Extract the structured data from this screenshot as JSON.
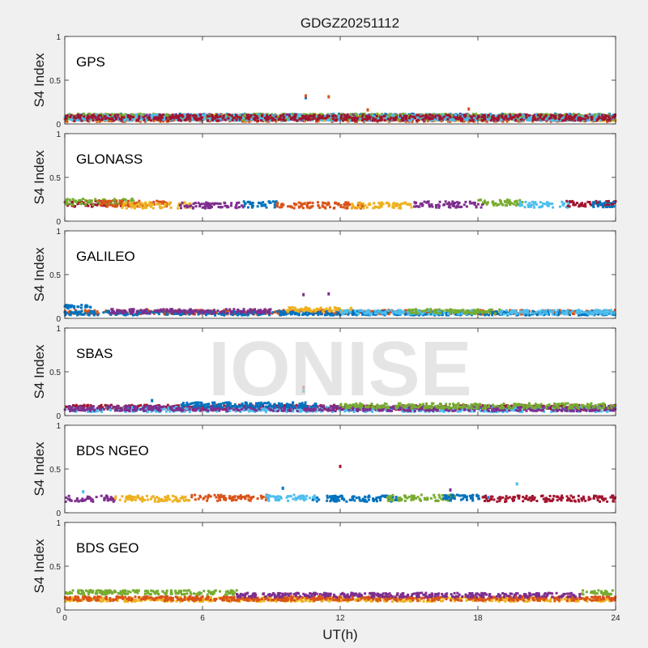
{
  "chart_data": {
    "type": "scatter",
    "title": "GDGZ20251112",
    "watermark": "IONISE",
    "xlabel": "UT(h)",
    "xlim": [
      0,
      24
    ],
    "xticks": [
      0,
      6,
      12,
      18,
      24
    ],
    "ylabel": "S4 Index",
    "ylim": [
      0,
      1
    ],
    "yticks": [
      0,
      0.5,
      1
    ],
    "grid": false,
    "series_colors": [
      "#0072BD",
      "#D95319",
      "#EDB120",
      "#7E2F8E",
      "#77AC30",
      "#4DBEEE",
      "#A2142F"
    ],
    "panels": [
      {
        "name": "GPS",
        "baseline": 0.07,
        "spread": 0.035,
        "segments": [
          {
            "start": 0,
            "end": 24,
            "color": "#0072BD",
            "level": 0.08
          },
          {
            "start": 0,
            "end": 24,
            "color": "#D95319",
            "level": 0.06
          },
          {
            "start": 0,
            "end": 24,
            "color": "#EDB120",
            "level": 0.07
          },
          {
            "start": 0,
            "end": 24,
            "color": "#7E2F8E",
            "level": 0.075
          },
          {
            "start": 0,
            "end": 24,
            "color": "#77AC30",
            "level": 0.08
          },
          {
            "start": 0,
            "end": 24,
            "color": "#4DBEEE",
            "level": 0.07
          },
          {
            "start": 0,
            "end": 24,
            "color": "#A2142F",
            "level": 0.07
          }
        ],
        "outliers": [
          {
            "x": 10.5,
            "y": 0.3,
            "color": "#0072BD"
          },
          {
            "x": 10.5,
            "y": 0.32,
            "color": "#D95319"
          },
          {
            "x": 11.5,
            "y": 0.31,
            "color": "#D95319"
          },
          {
            "x": 13.2,
            "y": 0.16,
            "color": "#D95319"
          },
          {
            "x": 17.6,
            "y": 0.17,
            "color": "#D95319"
          }
        ]
      },
      {
        "name": "GLONASS",
        "spread": 0.035,
        "segments": [
          {
            "start": 0,
            "end": 2.5,
            "color": "#A2142F",
            "level": 0.2
          },
          {
            "start": 0,
            "end": 3.0,
            "color": "#77AC30",
            "level": 0.22
          },
          {
            "start": 1.5,
            "end": 4.5,
            "color": "#D95319",
            "level": 0.2
          },
          {
            "start": 2.5,
            "end": 5.5,
            "color": "#EDB120",
            "level": 0.18
          },
          {
            "start": 5.0,
            "end": 7.8,
            "color": "#7E2F8E",
            "level": 0.18
          },
          {
            "start": 7.8,
            "end": 9.3,
            "color": "#0072BD",
            "level": 0.19
          },
          {
            "start": 9.2,
            "end": 13.0,
            "color": "#D95319",
            "level": 0.18
          },
          {
            "start": 12.5,
            "end": 15.2,
            "color": "#EDB120",
            "level": 0.18
          },
          {
            "start": 15.2,
            "end": 18.3,
            "color": "#7E2F8E",
            "level": 0.19
          },
          {
            "start": 18.0,
            "end": 20.0,
            "color": "#77AC30",
            "level": 0.21
          },
          {
            "start": 19.8,
            "end": 22.0,
            "color": "#4DBEEE",
            "level": 0.19
          },
          {
            "start": 21.8,
            "end": 24,
            "color": "#A2142F",
            "level": 0.2
          },
          {
            "start": 23.0,
            "end": 24,
            "color": "#0072BD",
            "level": 0.19
          }
        ],
        "outliers": []
      },
      {
        "name": "GALILEO",
        "spread": 0.025,
        "segments": [
          {
            "start": 0,
            "end": 1.2,
            "color": "#0072BD",
            "level": 0.13
          },
          {
            "start": 0,
            "end": 24,
            "color": "#D95319",
            "level": 0.07
          },
          {
            "start": 0,
            "end": 24,
            "color": "#0072BD",
            "level": 0.06
          },
          {
            "start": 2,
            "end": 9,
            "color": "#7E2F8E",
            "level": 0.08
          },
          {
            "start": 9.5,
            "end": 12.5,
            "color": "#EDB120",
            "level": 0.1
          },
          {
            "start": 12,
            "end": 18,
            "color": "#4DBEEE",
            "level": 0.07
          },
          {
            "start": 15,
            "end": 19,
            "color": "#77AC30",
            "level": 0.08
          },
          {
            "start": 19,
            "end": 24,
            "color": "#4DBEEE",
            "level": 0.07
          }
        ],
        "outliers": [
          {
            "x": 10.4,
            "y": 0.27,
            "color": "#7E2F8E"
          },
          {
            "x": 11.5,
            "y": 0.28,
            "color": "#7E2F8E"
          }
        ]
      },
      {
        "name": "SBAS",
        "spread": 0.03,
        "segments": [
          {
            "start": 0,
            "end": 24,
            "color": "#A2142F",
            "level": 0.09
          },
          {
            "start": 0,
            "end": 24,
            "color": "#4DBEEE",
            "level": 0.07
          },
          {
            "start": 0,
            "end": 24,
            "color": "#7E2F8E",
            "level": 0.08
          },
          {
            "start": 5,
            "end": 11,
            "color": "#0072BD",
            "level": 0.12
          },
          {
            "start": 12,
            "end": 24,
            "color": "#77AC30",
            "level": 0.11
          }
        ],
        "outliers": [
          {
            "x": 10.4,
            "y": 0.32,
            "color": "#A2142F"
          },
          {
            "x": 10.4,
            "y": 0.28,
            "color": "#0072BD"
          },
          {
            "x": 3.8,
            "y": 0.17,
            "color": "#0072BD"
          }
        ]
      },
      {
        "name": "BDS NGEO",
        "spread": 0.035,
        "segments": [
          {
            "start": 0,
            "end": 2.2,
            "color": "#7E2F8E",
            "level": 0.16
          },
          {
            "start": 2.2,
            "end": 5.5,
            "color": "#EDB120",
            "level": 0.16
          },
          {
            "start": 5.5,
            "end": 8.8,
            "color": "#D95319",
            "level": 0.17
          },
          {
            "start": 8.8,
            "end": 11.0,
            "color": "#4DBEEE",
            "level": 0.17
          },
          {
            "start": 10.8,
            "end": 14.5,
            "color": "#0072BD",
            "level": 0.16
          },
          {
            "start": 14.0,
            "end": 17.0,
            "color": "#77AC30",
            "level": 0.17
          },
          {
            "start": 16.5,
            "end": 18.5,
            "color": "#0072BD",
            "level": 0.17
          },
          {
            "start": 18.2,
            "end": 24,
            "color": "#A2142F",
            "level": 0.16
          }
        ],
        "outliers": [
          {
            "x": 12.0,
            "y": 0.53,
            "color": "#A2142F"
          },
          {
            "x": 19.7,
            "y": 0.33,
            "color": "#4DBEEE"
          },
          {
            "x": 16.8,
            "y": 0.26,
            "color": "#7E2F8E"
          },
          {
            "x": 9.5,
            "y": 0.28,
            "color": "#0072BD"
          },
          {
            "x": 0.8,
            "y": 0.24,
            "color": "#4DBEEE"
          }
        ]
      },
      {
        "name": "BDS GEO",
        "spread": 0.025,
        "segments": [
          {
            "start": 0,
            "end": 24,
            "color": "#EDB120",
            "level": 0.12
          },
          {
            "start": 0,
            "end": 24,
            "color": "#D95319",
            "level": 0.13
          },
          {
            "start": 0,
            "end": 7.5,
            "color": "#77AC30",
            "level": 0.2
          },
          {
            "start": 7.5,
            "end": 22.5,
            "color": "#7E2F8E",
            "level": 0.17
          },
          {
            "start": 22.5,
            "end": 24,
            "color": "#77AC30",
            "level": 0.2
          }
        ],
        "outliers": []
      }
    ]
  }
}
